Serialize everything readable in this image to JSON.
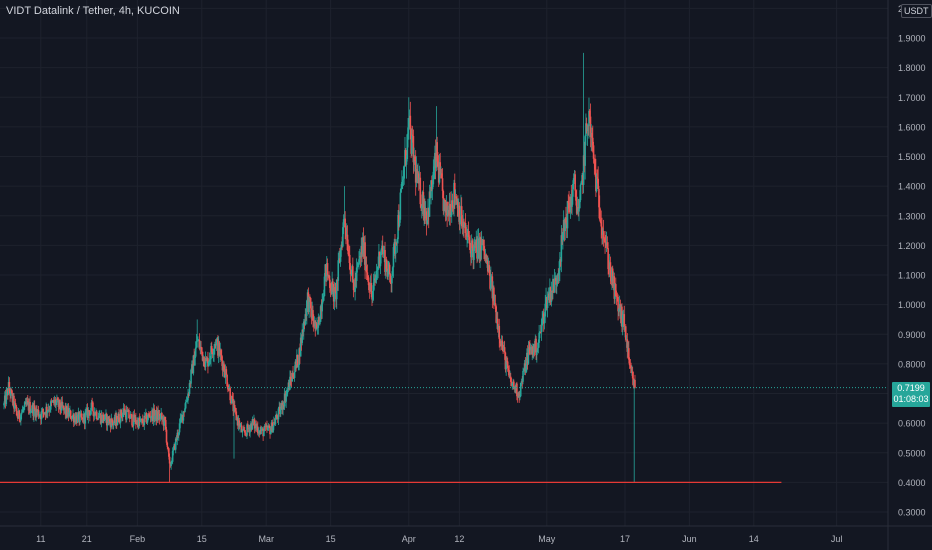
{
  "colors": {
    "background": "#131722",
    "grid": "#1e222d",
    "up": "#26a69a",
    "down": "#ef5350",
    "support_line": "#e53935",
    "axis_text": "#b2b5be",
    "current_price_line": "#26a69a"
  },
  "header": {
    "title": "VIDT Datalink / Tether, 4h, KUCOIN",
    "currency_badge": "USDT"
  },
  "current_price": {
    "price_label": "0.7199",
    "countdown_label": "01:08:03"
  },
  "chart_data": {
    "type": "candlestick",
    "symbol": "VIDT Datalink / Tether",
    "interval": "4h",
    "exchange": "KUCOIN",
    "quote_currency": "USDT",
    "ylim": [
      0.25,
      2.0
    ],
    "y_ticks": [
      {
        "value": 0.3,
        "label": "0.3000"
      },
      {
        "value": 0.4,
        "label": "0.4000"
      },
      {
        "value": 0.5,
        "label": "0.5000"
      },
      {
        "value": 0.6,
        "label": "0.6000"
      },
      {
        "value": 0.7,
        "label": "0.7000"
      },
      {
        "value": 0.8,
        "label": "0.8000"
      },
      {
        "value": 0.9,
        "label": "0.9000"
      },
      {
        "value": 1.0,
        "label": "1.0000"
      },
      {
        "value": 1.1,
        "label": "1.1000"
      },
      {
        "value": 1.2,
        "label": "1.2000"
      },
      {
        "value": 1.3,
        "label": "1.3000"
      },
      {
        "value": 1.4,
        "label": "1.4000"
      },
      {
        "value": 1.5,
        "label": "1.5000"
      },
      {
        "value": 1.6,
        "label": "1.6000"
      },
      {
        "value": 1.7,
        "label": "1.7000"
      },
      {
        "value": 1.8,
        "label": "1.8000"
      },
      {
        "value": 1.9,
        "label": "1.9000"
      },
      {
        "value": 2.0,
        "label": "2.0000"
      }
    ],
    "x_ticks": [
      "11",
      "21",
      "Feb",
      "15",
      "Mar",
      "15",
      "Apr",
      "12",
      "May",
      "17",
      "Jun",
      "14",
      "Jul"
    ],
    "time_range": [
      "Jan 3",
      "Jul 5"
    ],
    "x_ticks_days": [
      8,
      18,
      29,
      43,
      57,
      71,
      88,
      99,
      118,
      135,
      149,
      163,
      181
    ],
    "last_candle_day": 137.2,
    "current_price": 0.7199,
    "horizontal_line": {
      "value": 0.4,
      "end_day": 169
    },
    "price_path": [
      [
        0,
        0.66
      ],
      [
        1,
        0.72
      ],
      [
        3,
        0.62
      ],
      [
        5,
        0.66
      ],
      [
        8,
        0.63
      ],
      [
        11,
        0.67
      ],
      [
        14,
        0.63
      ],
      [
        17,
        0.61
      ],
      [
        19,
        0.65
      ],
      [
        21,
        0.62
      ],
      [
        24,
        0.6
      ],
      [
        26,
        0.64
      ],
      [
        28,
        0.61
      ],
      [
        30,
        0.6
      ],
      [
        32,
        0.63
      ],
      [
        34,
        0.62
      ],
      [
        35,
        0.6
      ],
      [
        36,
        0.45
      ],
      [
        38,
        0.58
      ],
      [
        40,
        0.7
      ],
      [
        42,
        0.88
      ],
      [
        44,
        0.8
      ],
      [
        46,
        0.88
      ],
      [
        48,
        0.78
      ],
      [
        50,
        0.64
      ],
      [
        52,
        0.56
      ],
      [
        54,
        0.6
      ],
      [
        56,
        0.57
      ],
      [
        58,
        0.58
      ],
      [
        60,
        0.64
      ],
      [
        62,
        0.73
      ],
      [
        64,
        0.82
      ],
      [
        66,
        1.02
      ],
      [
        68,
        0.9
      ],
      [
        70,
        1.12
      ],
      [
        72,
        1.02
      ],
      [
        74,
        1.3
      ],
      [
        76,
        1.05
      ],
      [
        78,
        1.2
      ],
      [
        80,
        1.02
      ],
      [
        82,
        1.2
      ],
      [
        84,
        1.08
      ],
      [
        86,
        1.32
      ],
      [
        88,
        1.6
      ],
      [
        90,
        1.4
      ],
      [
        92,
        1.3
      ],
      [
        94,
        1.5
      ],
      [
        96,
        1.3
      ],
      [
        98,
        1.38
      ],
      [
        100,
        1.25
      ],
      [
        102,
        1.18
      ],
      [
        104,
        1.2
      ],
      [
        106,
        1.06
      ],
      [
        108,
        0.88
      ],
      [
        110,
        0.74
      ],
      [
        112,
        0.7
      ],
      [
        114,
        0.84
      ],
      [
        116,
        0.86
      ],
      [
        118,
        1.02
      ],
      [
        120,
        1.08
      ],
      [
        122,
        1.28
      ],
      [
        124,
        1.4
      ],
      [
        125,
        1.3
      ],
      [
        127,
        1.65
      ],
      [
        129,
        1.38
      ],
      [
        131,
        1.18
      ],
      [
        133,
        1.02
      ],
      [
        135,
        0.92
      ],
      [
        136,
        0.78
      ],
      [
        137.2,
        0.72
      ]
    ],
    "notable_wicks": [
      {
        "day": 36,
        "low": 0.4
      },
      {
        "day": 42,
        "high": 0.95
      },
      {
        "day": 50,
        "low": 0.48
      },
      {
        "day": 74,
        "high": 1.4
      },
      {
        "day": 88,
        "high": 1.7
      },
      {
        "day": 94,
        "high": 1.67
      },
      {
        "day": 126,
        "high": 1.85
      },
      {
        "day": 137,
        "low": 0.4
      }
    ]
  }
}
